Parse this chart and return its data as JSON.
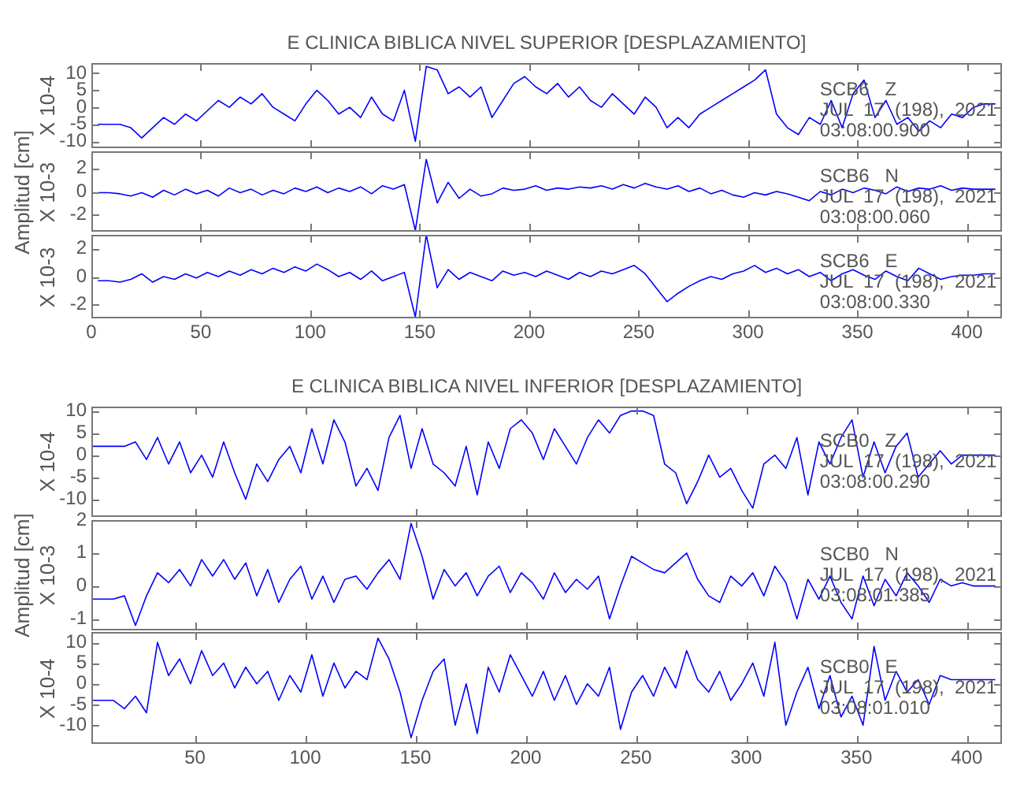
{
  "chart_data": [
    {
      "type": "line",
      "title": "E CLINICA BIBLICA NIVEL SUPERIOR [DESPLAZAMIENTO]",
      "ylabel": "X 10-4",
      "color": "#0000ff",
      "xlim": [
        0,
        416
      ],
      "ylim": [
        -12,
        13
      ],
      "xticks": [
        0,
        50,
        100,
        150,
        200,
        250,
        300,
        350,
        400
      ],
      "yticks": [
        -10,
        -5,
        0,
        5,
        10
      ],
      "tick_labels": "y",
      "annotations": [
        "SCB6   Z",
        "JUL  17  (198),  2021",
        "03:08:00.900"
      ],
      "x": [
        3,
        8,
        13,
        18,
        23,
        28,
        33,
        38,
        43,
        48,
        53,
        58,
        63,
        68,
        73,
        78,
        83,
        88,
        93,
        98,
        103,
        108,
        113,
        118,
        123,
        128,
        133,
        138,
        143,
        148,
        153,
        158,
        163,
        168,
        173,
        178,
        183,
        188,
        193,
        198,
        203,
        208,
        213,
        218,
        223,
        228,
        233,
        238,
        243,
        248,
        253,
        258,
        263,
        268,
        273,
        278,
        283,
        288,
        293,
        298,
        303,
        308,
        313,
        318,
        323,
        328,
        333,
        338,
        343,
        348,
        353,
        358,
        363,
        368,
        373,
        378,
        383,
        388,
        393,
        398,
        403,
        408,
        413
      ],
      "values": [
        -5,
        -5,
        -5,
        -6,
        -9,
        -6,
        -3,
        -5,
        -2,
        -4,
        -1,
        2,
        0,
        3,
        1,
        4,
        0,
        -2,
        -4,
        1,
        5,
        2,
        -2,
        0,
        -3,
        3,
        -2,
        -4,
        5,
        -10,
        12,
        11,
        4,
        6,
        3,
        6,
        -3,
        2,
        7,
        9,
        6,
        4,
        7,
        3,
        6,
        2,
        0,
        4,
        1,
        -2,
        3,
        0,
        -6,
        -3,
        -6,
        -2,
        0,
        2,
        4,
        6,
        8,
        11,
        -2,
        -6,
        -8,
        -3,
        -5,
        2,
        -6,
        4,
        8,
        -3,
        2,
        -5,
        -3,
        -7,
        -4,
        -6,
        -2,
        -3,
        0,
        1,
        1
      ]
    },
    {
      "type": "line",
      "ylabel": "Amplitud [cm]\nX 10-3",
      "color": "#0000ff",
      "xlim": [
        0,
        416
      ],
      "ylim": [
        -3.5,
        3.5
      ],
      "xticks": [
        0,
        50,
        100,
        150,
        200,
        250,
        300,
        350,
        400
      ],
      "yticks": [
        -2,
        0,
        2
      ],
      "tick_labels": "y",
      "annotations": [
        "SCB6   N",
        "JUL  17  (198),  2021",
        "03:08:00.060"
      ],
      "x": [
        3,
        8,
        13,
        18,
        23,
        28,
        33,
        38,
        43,
        48,
        53,
        58,
        63,
        68,
        73,
        78,
        83,
        88,
        93,
        98,
        103,
        108,
        113,
        118,
        123,
        128,
        133,
        138,
        143,
        148,
        153,
        158,
        163,
        168,
        173,
        178,
        183,
        188,
        193,
        198,
        203,
        208,
        213,
        218,
        223,
        228,
        233,
        238,
        243,
        248,
        253,
        258,
        263,
        268,
        273,
        278,
        283,
        288,
        293,
        298,
        303,
        308,
        313,
        318,
        323,
        328,
        333,
        338,
        343,
        348,
        353,
        358,
        363,
        368,
        373,
        378,
        383,
        388,
        393,
        398,
        403,
        408,
        413
      ],
      "values": [
        -0.1,
        -0.1,
        -0.2,
        -0.4,
        -0.1,
        -0.5,
        0.1,
        -0.3,
        0.2,
        -0.2,
        0.1,
        -0.4,
        0.3,
        -0.1,
        0.2,
        -0.3,
        0.1,
        -0.2,
        0.3,
        0.0,
        0.4,
        -0.1,
        0.3,
        0.0,
        0.4,
        -0.2,
        0.5,
        0.2,
        0.6,
        -3.4,
        2.8,
        -1.0,
        0.8,
        -0.6,
        0.2,
        -0.4,
        -0.2,
        0.3,
        0.1,
        0.2,
        0.5,
        0.1,
        0.3,
        0.2,
        0.4,
        0.3,
        0.5,
        0.2,
        0.6,
        0.3,
        0.7,
        0.4,
        0.2,
        0.5,
        0.0,
        0.3,
        -0.2,
        0.1,
        -0.3,
        -0.5,
        -0.1,
        -0.3,
        0.0,
        -0.2,
        -0.5,
        -0.8,
        0.0,
        -0.3,
        0.2,
        -0.1,
        0.3,
        0.1,
        -0.2,
        0.4,
        0.0,
        0.3,
        0.2,
        0.5,
        0.1,
        0.3,
        0.2,
        0.2,
        0.2
      ]
    },
    {
      "type": "line",
      "ylabel": "X 10-3",
      "color": "#0000ff",
      "xlim": [
        0,
        416
      ],
      "ylim": [
        -3,
        3
      ],
      "xticks": [
        0,
        50,
        100,
        150,
        200,
        250,
        300,
        350,
        400
      ],
      "yticks": [
        -2,
        0,
        2
      ],
      "annotations": [
        "SCB6   E",
        "JUL  17  (198),  2021",
        "03:08:00.330"
      ],
      "x": [
        3,
        8,
        13,
        18,
        23,
        28,
        33,
        38,
        43,
        48,
        53,
        58,
        63,
        68,
        73,
        78,
        83,
        88,
        93,
        98,
        103,
        108,
        113,
        118,
        123,
        128,
        133,
        138,
        143,
        148,
        153,
        158,
        163,
        168,
        173,
        178,
        183,
        188,
        193,
        198,
        203,
        208,
        213,
        218,
        223,
        228,
        233,
        238,
        243,
        248,
        253,
        258,
        263,
        268,
        273,
        278,
        283,
        288,
        293,
        298,
        303,
        308,
        313,
        318,
        323,
        328,
        333,
        338,
        343,
        348,
        353,
        358,
        363,
        368,
        373,
        378,
        383,
        388,
        393,
        398,
        403,
        408,
        413
      ],
      "values": [
        -0.3,
        -0.3,
        -0.4,
        -0.2,
        0.2,
        -0.4,
        0.0,
        -0.2,
        0.2,
        -0.1,
        0.3,
        0.0,
        0.4,
        0.1,
        0.5,
        0.2,
        0.6,
        0.3,
        0.7,
        0.4,
        0.9,
        0.5,
        0.0,
        0.3,
        -0.2,
        0.4,
        -0.3,
        0.0,
        0.3,
        -2.9,
        3.0,
        -0.8,
        0.5,
        -0.2,
        0.3,
        0.0,
        -0.3,
        0.4,
        0.1,
        0.3,
        0.0,
        0.4,
        0.1,
        -0.2,
        0.3,
        0.0,
        0.4,
        0.2,
        0.5,
        0.8,
        0.2,
        -0.8,
        -1.8,
        -1.2,
        -0.7,
        -0.3,
        0.0,
        -0.2,
        0.2,
        0.4,
        0.8,
        0.3,
        0.6,
        0.2,
        0.5,
        0.0,
        0.3,
        -0.3,
        0.2,
        0.5,
        0.1,
        -0.2,
        0.4,
        0.0,
        -0.3,
        0.6,
        0.2,
        -0.2,
        0.0,
        0.1,
        0.1,
        0.2,
        0.2
      ]
    },
    {
      "type": "line",
      "title": "E CLINICA BIBLICA NIVEL INFERIOR [DESPLAZAMIENTO]",
      "ylabel": "X 10-4",
      "color": "#0000ff",
      "xlim": [
        3,
        416
      ],
      "ylim": [
        -14,
        11
      ],
      "xticks": [
        50,
        100,
        150,
        200,
        250,
        300,
        350,
        400
      ],
      "yticks": [
        -10,
        -5,
        0,
        5,
        10
      ],
      "tick_labels": "y",
      "annotations": [
        "SCB0   Z",
        "JUL  17  (198),  2021",
        "03:08:00.290"
      ],
      "x": [
        3,
        8,
        13,
        18,
        23,
        28,
        33,
        38,
        43,
        48,
        53,
        58,
        63,
        68,
        73,
        78,
        83,
        88,
        93,
        98,
        103,
        108,
        113,
        118,
        123,
        128,
        133,
        138,
        143,
        148,
        153,
        158,
        163,
        168,
        173,
        178,
        183,
        188,
        193,
        198,
        203,
        208,
        213,
        218,
        223,
        228,
        233,
        238,
        243,
        248,
        253,
        258,
        263,
        268,
        273,
        278,
        283,
        288,
        293,
        298,
        303,
        308,
        313,
        318,
        323,
        328,
        333,
        338,
        343,
        348,
        353,
        358,
        363,
        368,
        373,
        378,
        383,
        388,
        393,
        398,
        403,
        408,
        413
      ],
      "values": [
        2,
        2,
        2,
        2,
        3,
        -1,
        4,
        -2,
        3,
        -4,
        0,
        -5,
        3,
        -4,
        -10,
        -2,
        -6,
        -1,
        2,
        -4,
        6,
        -2,
        8,
        3,
        -7,
        -3,
        -8,
        4,
        9,
        -3,
        6,
        -2,
        -4,
        -7,
        2,
        -9,
        3,
        -3,
        6,
        8,
        5,
        -1,
        6,
        2,
        -2,
        4,
        8,
        5,
        9,
        10,
        10,
        9,
        -2,
        -4,
        -11,
        -6,
        0,
        -5,
        -3,
        -8,
        -12,
        -2,
        0,
        -3,
        4,
        -9,
        3,
        -2,
        4,
        8,
        -5,
        3,
        -4,
        2,
        5,
        -5,
        -2,
        1,
        -2,
        0,
        0,
        0,
        0
      ]
    },
    {
      "type": "line",
      "ylabel": "Amplitud [cm]\nX 10-3",
      "color": "#0000ff",
      "xlim": [
        3,
        416
      ],
      "ylim": [
        -1.35,
        2
      ],
      "xticks": [
        50,
        100,
        150,
        200,
        250,
        300,
        350,
        400
      ],
      "yticks": [
        -1,
        0,
        1,
        2
      ],
      "tick_labels": "y",
      "annotations": [
        "SCB0   N",
        "JUL  17  (198),  2021",
        "03:08:01.385"
      ],
      "x": [
        3,
        8,
        13,
        18,
        23,
        28,
        33,
        38,
        43,
        48,
        53,
        58,
        63,
        68,
        73,
        78,
        83,
        88,
        93,
        98,
        103,
        108,
        113,
        118,
        123,
        128,
        133,
        138,
        143,
        148,
        153,
        158,
        163,
        168,
        173,
        178,
        183,
        188,
        193,
        198,
        203,
        208,
        213,
        218,
        223,
        228,
        233,
        238,
        243,
        248,
        253,
        258,
        263,
        268,
        273,
        278,
        283,
        288,
        293,
        298,
        303,
        308,
        313,
        318,
        323,
        328,
        333,
        338,
        343,
        348,
        353,
        358,
        363,
        368,
        373,
        378,
        383,
        388,
        393,
        398,
        403,
        408,
        413
      ],
      "values": [
        -0.4,
        -0.4,
        -0.4,
        -0.3,
        -1.2,
        -0.3,
        0.4,
        0.1,
        0.5,
        0.0,
        0.8,
        0.3,
        0.8,
        0.2,
        0.7,
        -0.3,
        0.5,
        -0.5,
        0.2,
        0.6,
        -0.4,
        0.3,
        -0.5,
        0.2,
        0.3,
        -0.1,
        0.4,
        0.8,
        0.2,
        1.9,
        0.9,
        -0.4,
        0.5,
        0.0,
        0.4,
        -0.3,
        0.3,
        0.6,
        -0.2,
        0.4,
        0.1,
        -0.4,
        0.4,
        -0.2,
        0.2,
        -0.1,
        0.3,
        -1.0,
        0.0,
        0.9,
        0.7,
        0.5,
        0.4,
        0.7,
        1.0,
        0.2,
        -0.3,
        -0.5,
        0.3,
        0.0,
        0.4,
        -0.3,
        0.6,
        0.1,
        -1.0,
        0.2,
        -0.4,
        0.3,
        -0.5,
        -1.0,
        0.3,
        -0.6,
        0.2,
        -0.3,
        0.4,
        0.0,
        -0.5,
        0.2,
        0.0,
        0.1,
        0.0,
        0.0,
        0.0
      ]
    },
    {
      "type": "line",
      "ylabel": "X 10-4",
      "color": "#0000ff",
      "xlim": [
        3,
        416
      ],
      "ylim": [
        -14.5,
        12.5
      ],
      "xticks": [
        50,
        100,
        150,
        200,
        250,
        300,
        350,
        400
      ],
      "yticks": [
        -10,
        -5,
        0,
        5,
        10
      ],
      "annotations": [
        "SCB0   E",
        "JUL  17  (198),  2021",
        "03:08:01.010"
      ],
      "x": [
        3,
        8,
        13,
        18,
        23,
        28,
        33,
        38,
        43,
        48,
        53,
        58,
        63,
        68,
        73,
        78,
        83,
        88,
        93,
        98,
        103,
        108,
        113,
        118,
        123,
        128,
        133,
        138,
        143,
        148,
        153,
        158,
        163,
        168,
        173,
        178,
        183,
        188,
        193,
        198,
        203,
        208,
        213,
        218,
        223,
        228,
        233,
        238,
        243,
        248,
        253,
        258,
        263,
        268,
        273,
        278,
        283,
        288,
        293,
        298,
        303,
        308,
        313,
        318,
        323,
        328,
        333,
        338,
        343,
        348,
        353,
        358,
        363,
        368,
        373,
        378,
        383,
        388,
        393,
        398,
        403,
        408,
        413
      ],
      "values": [
        -4,
        -4,
        -4,
        -6,
        -3,
        -7,
        10,
        2,
        6,
        0,
        8,
        2,
        5,
        -1,
        4,
        0,
        3,
        -4,
        2,
        -2,
        7,
        -3,
        5,
        -1,
        3,
        1,
        11,
        6,
        -2,
        -13,
        -4,
        3,
        6,
        -10,
        0,
        -12,
        4,
        -2,
        7,
        2,
        -3,
        3,
        -4,
        2,
        -5,
        0,
        -3,
        4,
        -11,
        -2,
        2,
        -3,
        4,
        -1,
        8,
        1,
        -2,
        3,
        -4,
        0,
        5,
        -3,
        10,
        -10,
        -2,
        4,
        -6,
        2,
        -8,
        -3,
        -10,
        9,
        -4,
        3,
        -2,
        1,
        -5,
        2,
        1,
        1,
        1,
        1,
        1
      ]
    }
  ]
}
